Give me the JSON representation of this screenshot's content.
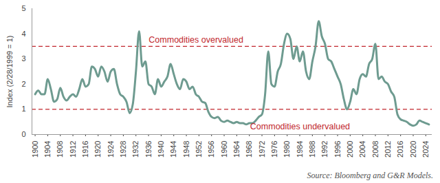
{
  "chart_data": {
    "type": "line",
    "y_label": "Index (2/28/1999 = 1)",
    "source": "Source: Bloomberg and G&R Models.",
    "x": [
      1900,
      1901,
      1902,
      1903,
      1904,
      1905,
      1906,
      1907,
      1908,
      1909,
      1910,
      1911,
      1912,
      1913,
      1914,
      1915,
      1916,
      1917,
      1918,
      1919,
      1920,
      1921,
      1922,
      1923,
      1924,
      1925,
      1926,
      1927,
      1928,
      1929,
      1930,
      1931,
      1932,
      1933,
      1934,
      1935,
      1936,
      1937,
      1938,
      1939,
      1940,
      1941,
      1942,
      1943,
      1944,
      1945,
      1946,
      1947,
      1948,
      1949,
      1950,
      1951,
      1952,
      1953,
      1954,
      1955,
      1956,
      1957,
      1958,
      1959,
      1960,
      1961,
      1962,
      1963,
      1964,
      1965,
      1966,
      1967,
      1968,
      1969,
      1970,
      1971,
      1972,
      1973,
      1974,
      1975,
      1976,
      1977,
      1978,
      1979,
      1980,
      1981,
      1982,
      1983,
      1984,
      1985,
      1986,
      1987,
      1988,
      1989,
      1990,
      1991,
      1992,
      1993,
      1994,
      1995,
      1996,
      1997,
      1998,
      1999,
      2000,
      2001,
      2002,
      2003,
      2004,
      2005,
      2006,
      2007,
      2008,
      2009,
      2010,
      2011,
      2012,
      2013,
      2014,
      2015,
      2016,
      2017,
      2018,
      2019,
      2020,
      2021,
      2022,
      2023,
      2024,
      2025
    ],
    "values": [
      1.6,
      1.75,
      1.6,
      1.6,
      2.2,
      1.8,
      1.3,
      1.4,
      1.85,
      1.5,
      1.35,
      1.5,
      1.6,
      1.5,
      1.8,
      2.2,
      1.9,
      2.0,
      2.7,
      2.6,
      2.3,
      2.7,
      2.5,
      2.1,
      2.5,
      2.6,
      2.0,
      1.6,
      1.5,
      1.3,
      0.85,
      1.2,
      2.5,
      4.1,
      2.7,
      2.9,
      2.0,
      1.9,
      1.6,
      2.2,
      1.9,
      2.1,
      2.3,
      2.8,
      2.4,
      2.0,
      1.8,
      2.2,
      2.1,
      1.8,
      1.9,
      1.6,
      1.5,
      1.3,
      1.25,
      0.9,
      0.7,
      0.65,
      0.7,
      0.55,
      0.5,
      0.55,
      0.5,
      0.45,
      0.5,
      0.45,
      0.45,
      0.4,
      0.45,
      0.45,
      0.55,
      0.7,
      0.8,
      1.6,
      3.3,
      2.0,
      1.9,
      2.5,
      2.8,
      3.6,
      4.0,
      3.8,
      3.0,
      3.5,
      2.9,
      3.3,
      2.5,
      2.2,
      2.9,
      3.5,
      4.5,
      3.9,
      3.6,
      3.0,
      2.9,
      2.6,
      2.3,
      2.0,
      1.4,
      1.0,
      1.3,
      1.8,
      1.6,
      2.2,
      2.4,
      2.3,
      2.8,
      3.0,
      3.6,
      2.2,
      2.3,
      2.1,
      2.0,
      1.7,
      1.5,
      0.8,
      0.6,
      0.55,
      0.5,
      0.4,
      0.35,
      0.4,
      0.55,
      0.5,
      0.45,
      0.4
    ],
    "color": "#6e9b90",
    "xlim": [
      1899,
      2026
    ],
    "xticks": [
      1900,
      1904,
      1908,
      1912,
      1916,
      1920,
      1924,
      1928,
      1932,
      1936,
      1940,
      1944,
      1948,
      1952,
      1956,
      1960,
      1964,
      1968,
      1972,
      1976,
      1980,
      1984,
      1988,
      1992,
      1996,
      2000,
      2004,
      2008,
      2012,
      2016,
      2020,
      2024
    ],
    "ylim": [
      0,
      5
    ],
    "yticks": [
      0,
      1,
      2,
      3,
      4,
      5
    ],
    "grid": false,
    "reference_lines": [
      {
        "value": 3.5,
        "label": "Commodities overvalued",
        "color": "#c1272d",
        "line_style": "dashed"
      },
      {
        "value": 1,
        "label": "Commodities undervalued",
        "color": "#c1272d",
        "line_style": "dashed"
      }
    ]
  }
}
